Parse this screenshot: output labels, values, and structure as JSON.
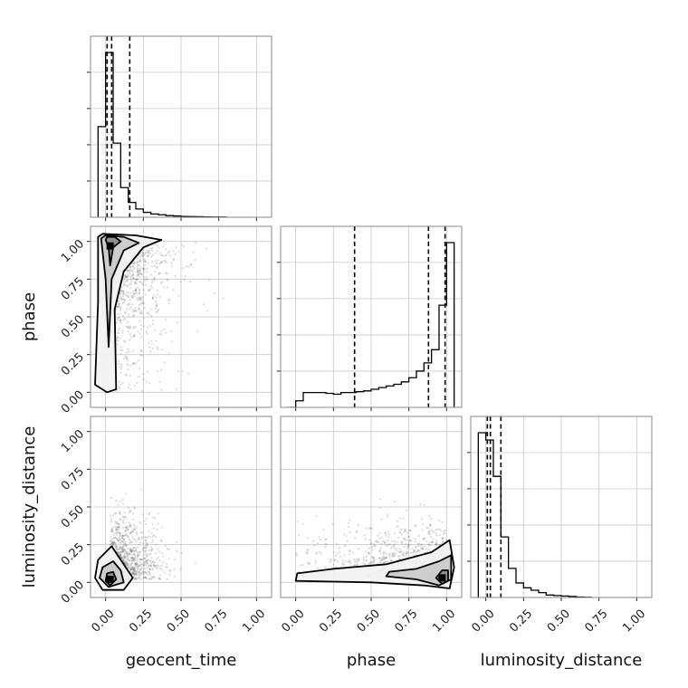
{
  "chart_data": {
    "type": "corner",
    "parameters": [
      "geocent_time",
      "phase",
      "luminosity_distance"
    ],
    "ticks": [
      "0.00",
      "0.25",
      "0.50",
      "0.75",
      "1.00"
    ],
    "range": [
      -0.1,
      1.1
    ],
    "grid": true,
    "histograms": [
      {
        "parameter": "geocent_time",
        "bin_edges": [
          -0.05,
          0.0,
          0.05,
          0.1,
          0.15,
          0.2,
          0.25,
          0.3,
          0.35,
          0.4,
          0.45,
          0.5,
          0.55,
          0.6,
          0.65,
          0.7,
          0.75,
          0.8
        ],
        "counts": [
          0.55,
          1.0,
          0.45,
          0.18,
          0.09,
          0.05,
          0.03,
          0.02,
          0.015,
          0.01,
          0.008,
          0.005,
          0.004,
          0.003,
          0.002,
          0.001,
          0.001
        ],
        "quantiles": [
          0.01,
          0.04,
          0.16
        ]
      },
      {
        "parameter": "phase",
        "bin_edges": [
          -0.05,
          0.0,
          0.05,
          0.1,
          0.15,
          0.2,
          0.25,
          0.3,
          0.35,
          0.4,
          0.45,
          0.5,
          0.55,
          0.6,
          0.65,
          0.7,
          0.75,
          0.8,
          0.85,
          0.9,
          0.95,
          1.0,
          1.05
        ],
        "counts": [
          0.0,
          0.04,
          0.09,
          0.09,
          0.09,
          0.085,
          0.08,
          0.09,
          0.09,
          0.095,
          0.1,
          0.11,
          0.12,
          0.13,
          0.14,
          0.155,
          0.18,
          0.22,
          0.27,
          0.35,
          0.62,
          1.0
        ],
        "quantiles": [
          0.39,
          0.88,
          0.99
        ]
      },
      {
        "parameter": "luminosity_distance",
        "bin_edges": [
          -0.05,
          0.0,
          0.05,
          0.1,
          0.15,
          0.2,
          0.25,
          0.3,
          0.35,
          0.4,
          0.45,
          0.5,
          0.55,
          0.6,
          0.65,
          0.7
        ],
        "counts": [
          0.68,
          0.65,
          0.5,
          0.25,
          0.12,
          0.06,
          0.04,
          0.03,
          0.02,
          0.01,
          0.008,
          0.006,
          0.004,
          0.002,
          0.001
        ],
        "quantiles": [
          0.01,
          0.03,
          0.1
        ]
      }
    ],
    "pairs": [
      {
        "x": "geocent_time",
        "y": "phase",
        "concentration": [
          0.03,
          0.97
        ],
        "contours": [
          [
            [
              0.0,
              1.01
            ],
            [
              0.02,
              0.96
            ],
            [
              0.03,
              0.84
            ],
            [
              0.05,
              0.96
            ],
            [
              0.1,
              1.0
            ],
            [
              0.06,
              1.03
            ],
            [
              0.01,
              1.03
            ]
          ],
          [
            [
              -0.03,
              1.02
            ],
            [
              0.0,
              0.75
            ],
            [
              0.02,
              0.3
            ],
            [
              0.04,
              0.75
            ],
            [
              0.12,
              0.94
            ],
            [
              0.22,
              0.99
            ],
            [
              0.12,
              1.03
            ],
            [
              0.0,
              1.04
            ]
          ],
          [
            [
              -0.05,
              1.03
            ],
            [
              -0.05,
              0.6
            ],
            [
              -0.07,
              0.05
            ],
            [
              0.01,
              0.0
            ],
            [
              0.07,
              0.02
            ],
            [
              0.06,
              0.55
            ],
            [
              0.12,
              0.8
            ],
            [
              0.25,
              0.96
            ],
            [
              0.37,
              1.01
            ],
            [
              0.2,
              1.04
            ],
            [
              -0.02,
              1.05
            ]
          ]
        ]
      },
      {
        "x": "geocent_time",
        "y": "luminosity_distance",
        "concentration": [
          0.03,
          0.02
        ],
        "contours": [
          [
            [
              0.0,
              0.01
            ],
            [
              0.03,
              -0.02
            ],
            [
              0.07,
              0.02
            ],
            [
              0.05,
              0.07
            ],
            [
              0.01,
              0.06
            ]
          ],
          [
            [
              -0.04,
              0.03
            ],
            [
              0.02,
              -0.03
            ],
            [
              0.12,
              0.0
            ],
            [
              0.1,
              0.08
            ],
            [
              0.05,
              0.14
            ],
            [
              -0.02,
              0.1
            ]
          ],
          [
            [
              -0.07,
              0.03
            ],
            [
              -0.02,
              -0.05
            ],
            [
              0.12,
              -0.05
            ],
            [
              0.18,
              0.03
            ],
            [
              0.1,
              0.15
            ],
            [
              0.04,
              0.24
            ],
            [
              -0.05,
              0.15
            ]
          ]
        ]
      },
      {
        "x": "phase",
        "y": "luminosity_distance",
        "concentration": [
          0.97,
          0.03
        ],
        "contours": [
          [
            [
              0.93,
              0.03
            ],
            [
              0.97,
              -0.01
            ],
            [
              1.01,
              0.01
            ],
            [
              1.01,
              0.08
            ],
            [
              0.97,
              0.08
            ]
          ],
          [
            [
              0.6,
              0.04
            ],
            [
              0.8,
              0.02
            ],
            [
              0.95,
              -0.02
            ],
            [
              1.03,
              0.02
            ],
            [
              1.03,
              0.18
            ],
            [
              0.95,
              0.14
            ],
            [
              0.8,
              0.09
            ],
            [
              0.62,
              0.07
            ]
          ],
          [
            [
              0.0,
              0.01
            ],
            [
              0.5,
              0.0
            ],
            [
              0.85,
              -0.02
            ],
            [
              1.02,
              -0.04
            ],
            [
              1.05,
              0.1
            ],
            [
              1.02,
              0.28
            ],
            [
              0.9,
              0.2
            ],
            [
              0.6,
              0.12
            ],
            [
              0.25,
              0.09
            ],
            [
              0.01,
              0.06
            ]
          ]
        ]
      }
    ]
  }
}
